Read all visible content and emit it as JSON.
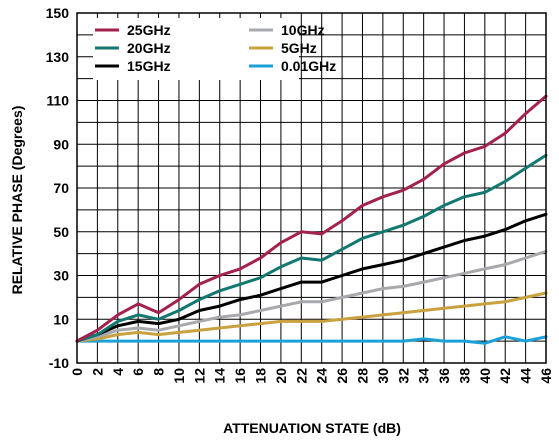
{
  "chart_data": {
    "type": "line",
    "title": "",
    "xlabel": "ATTENUATION STATE (dB)",
    "ylabel": "RELATIVE PHASE (Degrees)",
    "xlim": [
      0,
      46
    ],
    "ylim": [
      -10,
      150
    ],
    "x_ticks": [
      0,
      2,
      4,
      6,
      8,
      10,
      12,
      14,
      16,
      18,
      20,
      22,
      24,
      26,
      28,
      30,
      32,
      34,
      36,
      38,
      40,
      42,
      44,
      46
    ],
    "y_ticks": [
      -10,
      10,
      30,
      50,
      70,
      90,
      110,
      130,
      150
    ],
    "grid": true,
    "legend_position": "top-left",
    "x": [
      0,
      2,
      4,
      6,
      8,
      10,
      12,
      14,
      16,
      18,
      20,
      22,
      24,
      26,
      28,
      30,
      32,
      34,
      36,
      38,
      40,
      42,
      44,
      46
    ],
    "series": [
      {
        "name": "25GHz",
        "color": "#a3214e",
        "values": [
          0,
          5,
          12,
          17,
          13,
          19,
          26,
          30,
          33,
          38,
          45,
          50,
          49,
          55,
          62,
          66,
          69,
          74,
          81,
          86,
          89,
          95,
          104,
          112
        ]
      },
      {
        "name": "20GHz",
        "color": "#13786f",
        "values": [
          0,
          3,
          9,
          12,
          10,
          14,
          19,
          23,
          26,
          29,
          34,
          38,
          37,
          42,
          47,
          50,
          53,
          57,
          62,
          66,
          68,
          73,
          79,
          85
        ]
      },
      {
        "name": "15GHz",
        "color": "#000000",
        "values": [
          0,
          3,
          7,
          9,
          8,
          10,
          14,
          16,
          19,
          21,
          24,
          27,
          27,
          30,
          33,
          35,
          37,
          40,
          43,
          46,
          48,
          51,
          55,
          58
        ]
      },
      {
        "name": "10GHz",
        "color": "#a7a9ac",
        "values": [
          0,
          2,
          5,
          6,
          5,
          7,
          9,
          11,
          12,
          14,
          16,
          18,
          18,
          20,
          22,
          24,
          25,
          27,
          29,
          31,
          33,
          35,
          38,
          41
        ]
      },
      {
        "name": "5GHz",
        "color": "#c9a13f",
        "values": [
          0,
          1,
          3,
          4,
          3,
          4,
          5,
          6,
          7,
          8,
          9,
          9,
          9,
          10,
          11,
          12,
          13,
          14,
          15,
          16,
          17,
          18,
          20,
          22
        ]
      },
      {
        "name": "0.01GHz",
        "color": "#1ba1d8",
        "values": [
          0,
          0,
          0,
          0,
          0,
          0,
          0,
          0,
          0,
          0,
          0,
          0,
          0,
          0,
          0,
          0,
          0,
          1,
          0,
          0,
          -1,
          2,
          0,
          2
        ]
      }
    ]
  }
}
